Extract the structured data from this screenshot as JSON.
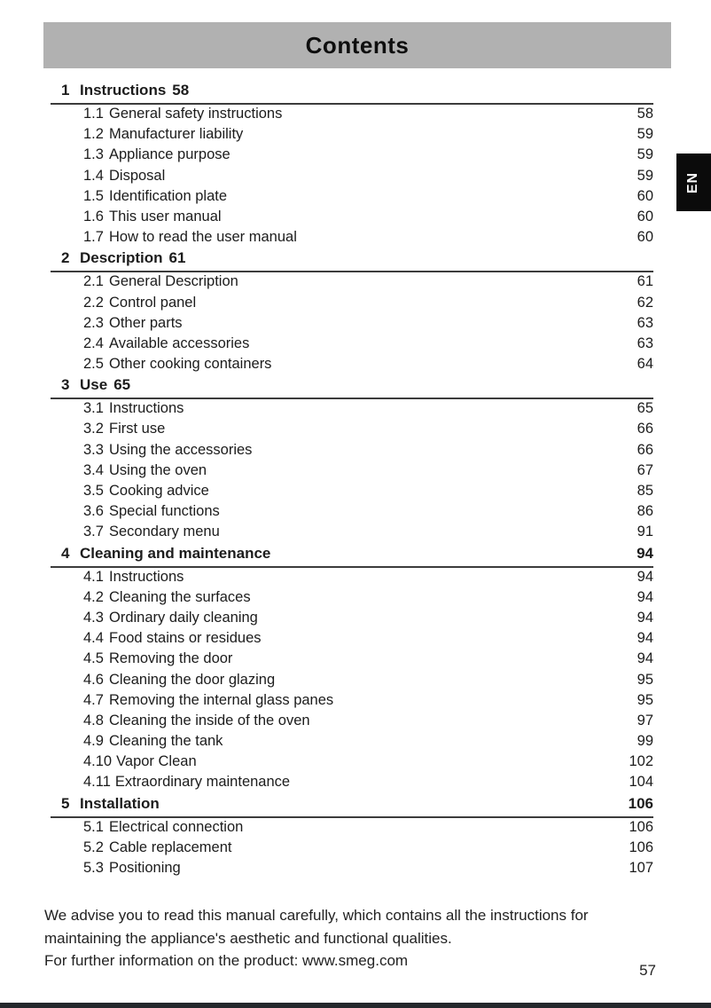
{
  "header": {
    "title": "Contents"
  },
  "language_tab": {
    "label": "EN"
  },
  "toc": {
    "chapters": [
      {
        "number": "1",
        "title": "Instructions",
        "page": "58",
        "page_position": "inline",
        "entries": [
          {
            "number": "1.1",
            "title": "General safety instructions",
            "page": "58"
          },
          {
            "number": "1.2",
            "title": "Manufacturer liability",
            "page": "59"
          },
          {
            "number": "1.3",
            "title": "Appliance purpose",
            "page": "59"
          },
          {
            "number": "1.4",
            "title": "Disposal",
            "page": "59"
          },
          {
            "number": "1.5",
            "title": "Identification plate",
            "page": "60"
          },
          {
            "number": "1.6",
            "title": "This user manual",
            "page": "60"
          },
          {
            "number": "1.7",
            "title": "How to read the user manual",
            "page": "60"
          }
        ]
      },
      {
        "number": "2",
        "title": "Description",
        "page": "61",
        "page_position": "inline",
        "entries": [
          {
            "number": "2.1",
            "title": "General Description",
            "page": "61"
          },
          {
            "number": "2.2",
            "title": "Control panel",
            "page": "62"
          },
          {
            "number": "2.3",
            "title": "Other parts",
            "page": "63"
          },
          {
            "number": "2.4",
            "title": "Available accessories",
            "page": "63"
          },
          {
            "number": "2.5",
            "title": "Other cooking containers",
            "page": "64"
          }
        ]
      },
      {
        "number": "3",
        "title": "Use",
        "page": "65",
        "page_position": "inline",
        "entries": [
          {
            "number": "3.1",
            "title": "Instructions",
            "page": "65"
          },
          {
            "number": "3.2",
            "title": "First use",
            "page": "66"
          },
          {
            "number": "3.3",
            "title": "Using the accessories",
            "page": "66"
          },
          {
            "number": "3.4",
            "title": "Using the oven",
            "page": "67"
          },
          {
            "number": "3.5",
            "title": "Cooking advice",
            "page": "85"
          },
          {
            "number": "3.6",
            "title": "Special functions",
            "page": "86"
          },
          {
            "number": "3.7",
            "title": "Secondary menu",
            "page": "91"
          }
        ]
      },
      {
        "number": "4",
        "title": "Cleaning and maintenance",
        "page": "94",
        "page_position": "right",
        "entries": [
          {
            "number": "4.1",
            "title": "Instructions",
            "page": "94"
          },
          {
            "number": "4.2",
            "title": "Cleaning the surfaces",
            "page": "94"
          },
          {
            "number": "4.3",
            "title": "Ordinary daily cleaning",
            "page": "94"
          },
          {
            "number": "4.4",
            "title": "Food stains or residues",
            "page": "94"
          },
          {
            "number": "4.5",
            "title": "Removing the door",
            "page": "94"
          },
          {
            "number": "4.6",
            "title": "Cleaning the door glazing",
            "page": "95"
          },
          {
            "number": "4.7",
            "title": "Removing the internal glass panes",
            "page": "95"
          },
          {
            "number": "4.8",
            "title": "Cleaning the inside of the oven",
            "page": "97"
          },
          {
            "number": "4.9",
            "title": "Cleaning the tank",
            "page": "99"
          },
          {
            "number": "4.10",
            "title": "Vapor Clean",
            "page": "102"
          },
          {
            "number": "4.11",
            "title": "Extraordinary maintenance",
            "page": "104"
          }
        ]
      },
      {
        "number": "5",
        "title": "Installation",
        "page": "106",
        "page_position": "right",
        "entries": [
          {
            "number": "5.1",
            "title": "Electrical connection",
            "page": "106"
          },
          {
            "number": "5.2",
            "title": "Cable replacement",
            "page": "106"
          },
          {
            "number": "5.3",
            "title": "Positioning",
            "page": "107"
          }
        ]
      }
    ]
  },
  "footer": {
    "advice": "We advise you to read this manual carefully, which contains all the instructions for maintaining the appliance's aesthetic and functional qualities.",
    "info": "For further information on the product: www.smeg.com",
    "page_number": "57"
  },
  "colors": {
    "header_bg": "#b1b1b1",
    "tab_bg": "#0b0b0b",
    "bottom_bar": "#23272b",
    "text": "#1c1c1c"
  }
}
